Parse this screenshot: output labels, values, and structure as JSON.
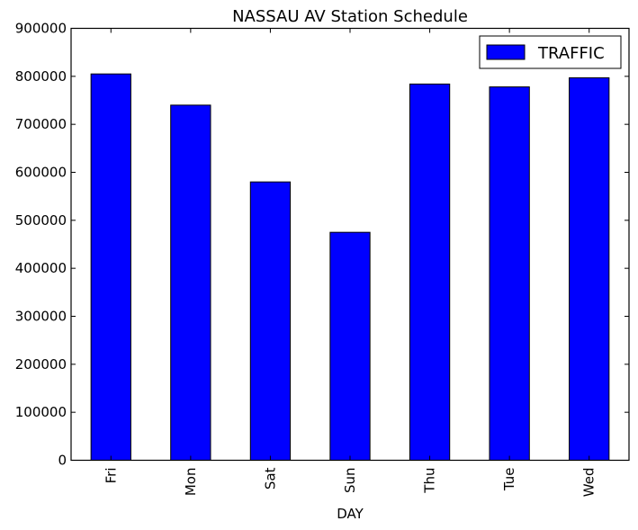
{
  "chart_data": {
    "type": "bar",
    "title": "NASSAU AV Station Schedule",
    "xlabel": "DAY",
    "ylabel": "",
    "categories": [
      "Fri",
      "Mon",
      "Sat",
      "Sun",
      "Thu",
      "Tue",
      "Wed"
    ],
    "series": [
      {
        "name": "TRAFFIC",
        "values": [
          805000,
          740000,
          580000,
          475000,
          784000,
          778000,
          797000
        ]
      }
    ],
    "ylim": [
      0,
      900000
    ],
    "yticks": [
      0,
      100000,
      200000,
      300000,
      400000,
      500000,
      600000,
      700000,
      800000,
      900000
    ],
    "ytick_labels": [
      "0",
      "100000",
      "200000",
      "300000",
      "400000",
      "500000",
      "600000",
      "700000",
      "800000",
      "900000"
    ],
    "grid": false,
    "legend_position": "top-right",
    "colors": {
      "bar": "#0000ff",
      "bar_edge": "#000000",
      "axes": "#000000"
    }
  }
}
